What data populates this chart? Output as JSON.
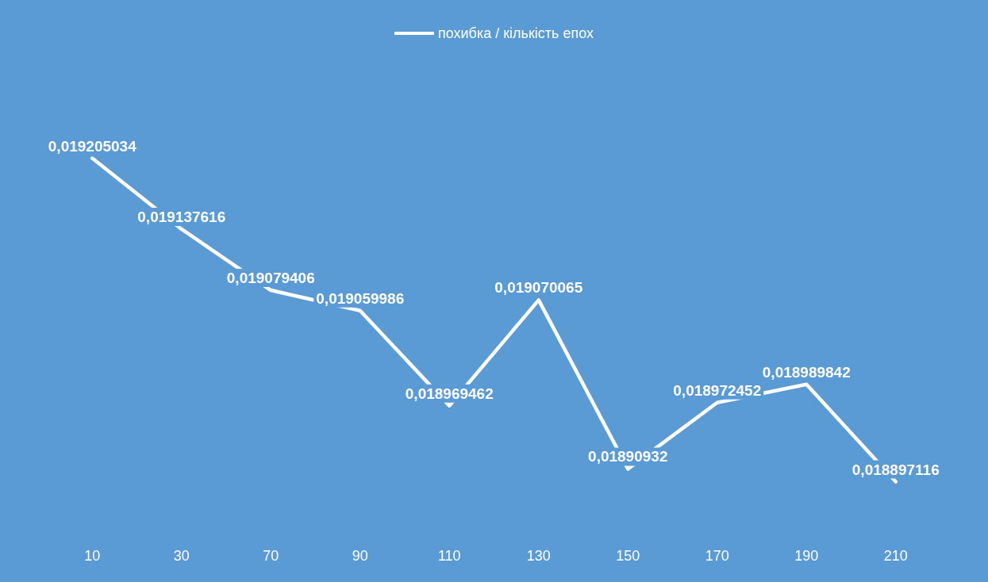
{
  "chart_data": {
    "type": "line",
    "categories": [
      "10",
      "30",
      "70",
      "90",
      "110",
      "130",
      "150",
      "170",
      "190",
      "210"
    ],
    "series": [
      {
        "name": "похибка / кількість епох",
        "color": "#ffffff",
        "values": [
          0.019205034,
          0.019137616,
          0.019079406,
          0.019059986,
          0.018969462,
          0.019070065,
          0.01890932,
          0.018972452,
          0.018989842,
          0.018897116
        ],
        "value_labels": [
          "0,019205034",
          "0,019137616",
          "0,019079406",
          "0,019059986",
          "0,018969462",
          "0,019070065",
          "0,01890932",
          "0,018972452",
          "0,018989842",
          "0,018897116"
        ]
      }
    ],
    "legend": "top",
    "marker": "none",
    "line_style": "solid"
  }
}
